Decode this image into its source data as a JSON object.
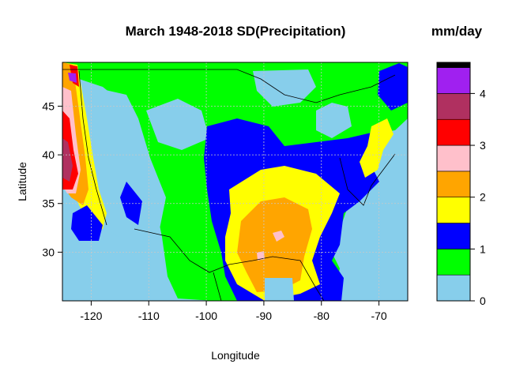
{
  "title": "March 1948-2018 SD(Precipitation)",
  "units": "mm/day",
  "xlabel": "Longitude",
  "ylabel": "Latitude",
  "chart_data": {
    "type": "heatmap",
    "x_ticks": [
      "-120",
      "-110",
      "-100",
      "-90",
      "-80",
      "-70"
    ],
    "y_ticks": [
      "30",
      "35",
      "40",
      "45"
    ],
    "xlim": [
      -125,
      -65
    ],
    "ylim": [
      25,
      49.5
    ],
    "grid": true,
    "legend": {
      "placement": "right",
      "ticks": [
        "0",
        "1",
        "2",
        "3",
        "4"
      ],
      "range": [
        0,
        4.6
      ],
      "levels": [
        {
          "from": 0.0,
          "to": 0.5,
          "color": "#87CEEB"
        },
        {
          "from": 0.5,
          "to": 1.0,
          "color": "#00FF00"
        },
        {
          "from": 1.0,
          "to": 1.5,
          "color": "#0000FF"
        },
        {
          "from": 1.5,
          "to": 2.0,
          "color": "#FFFF00"
        },
        {
          "from": 2.0,
          "to": 2.5,
          "color": "#FFA500"
        },
        {
          "from": 2.5,
          "to": 3.0,
          "color": "#FFC0CB"
        },
        {
          "from": 3.0,
          "to": 3.5,
          "color": "#FF0000"
        },
        {
          "from": 3.5,
          "to": 4.0,
          "color": "#B03060"
        },
        {
          "from": 4.0,
          "to": 4.5,
          "color": "#A020F0"
        },
        {
          "from": 4.5,
          "to": 4.6,
          "color": "#000000"
        }
      ]
    }
  }
}
